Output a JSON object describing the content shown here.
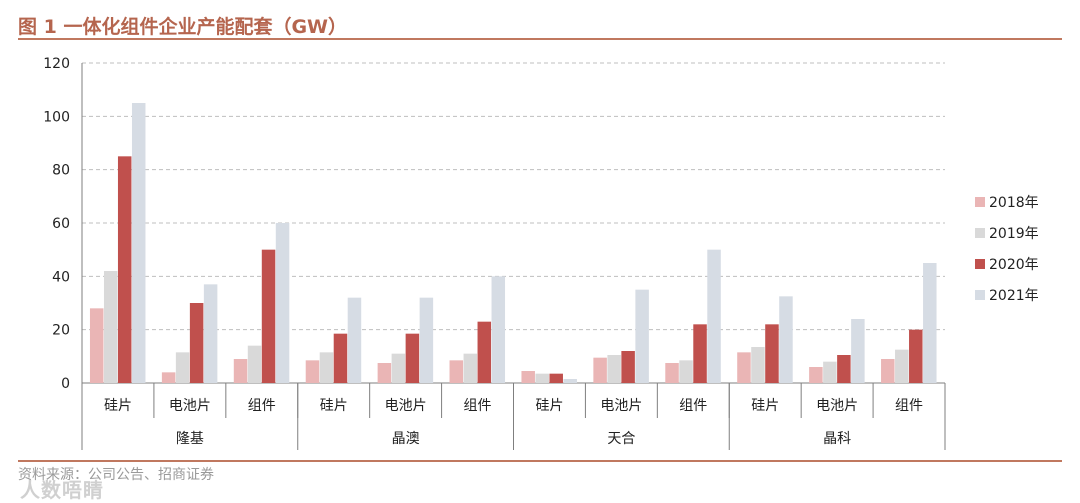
{
  "figure": {
    "title": "图 1 一体化组件企业产能配套（GW）",
    "source": "资料来源：公司公告、招商证券",
    "watermark": "人数唔睛"
  },
  "colors": {
    "accent": "#c0785f",
    "series": [
      "#eab5b5",
      "#d9d9d9",
      "#c0504d",
      "#d6dce4"
    ]
  },
  "chart_data": {
    "type": "bar",
    "title": "",
    "xlabel": "",
    "ylabel": "",
    "ylim": [
      0,
      120
    ],
    "yticks": [
      0,
      20,
      40,
      60,
      80,
      100,
      120
    ],
    "grid": true,
    "legend_position": "right",
    "groups": [
      {
        "name": "隆基",
        "categories": [
          "硅片",
          "电池片",
          "组件"
        ]
      },
      {
        "name": "晶澳",
        "categories": [
          "硅片",
          "电池片",
          "组件"
        ]
      },
      {
        "name": "天合",
        "categories": [
          "硅片",
          "电池片",
          "组件"
        ]
      },
      {
        "name": "晶科",
        "categories": [
          "硅片",
          "电池片",
          "组件"
        ]
      }
    ],
    "series": [
      {
        "name": "2018年",
        "values": [
          28,
          4,
          9,
          8.5,
          7.5,
          8.5,
          4.5,
          9.5,
          7.5,
          11.5,
          6,
          9
        ]
      },
      {
        "name": "2019年",
        "values": [
          42,
          11.5,
          14,
          11.5,
          11,
          11,
          3.5,
          10.5,
          8.5,
          13.5,
          8,
          12.5
        ]
      },
      {
        "name": "2020年",
        "values": [
          85,
          30,
          50,
          18.5,
          18.5,
          23,
          3.5,
          12,
          22,
          22,
          10.5,
          20
        ]
      },
      {
        "name": "2021年",
        "values": [
          105,
          37,
          60,
          32,
          32,
          40,
          1.5,
          35,
          50,
          32.5,
          24,
          45
        ]
      }
    ]
  }
}
